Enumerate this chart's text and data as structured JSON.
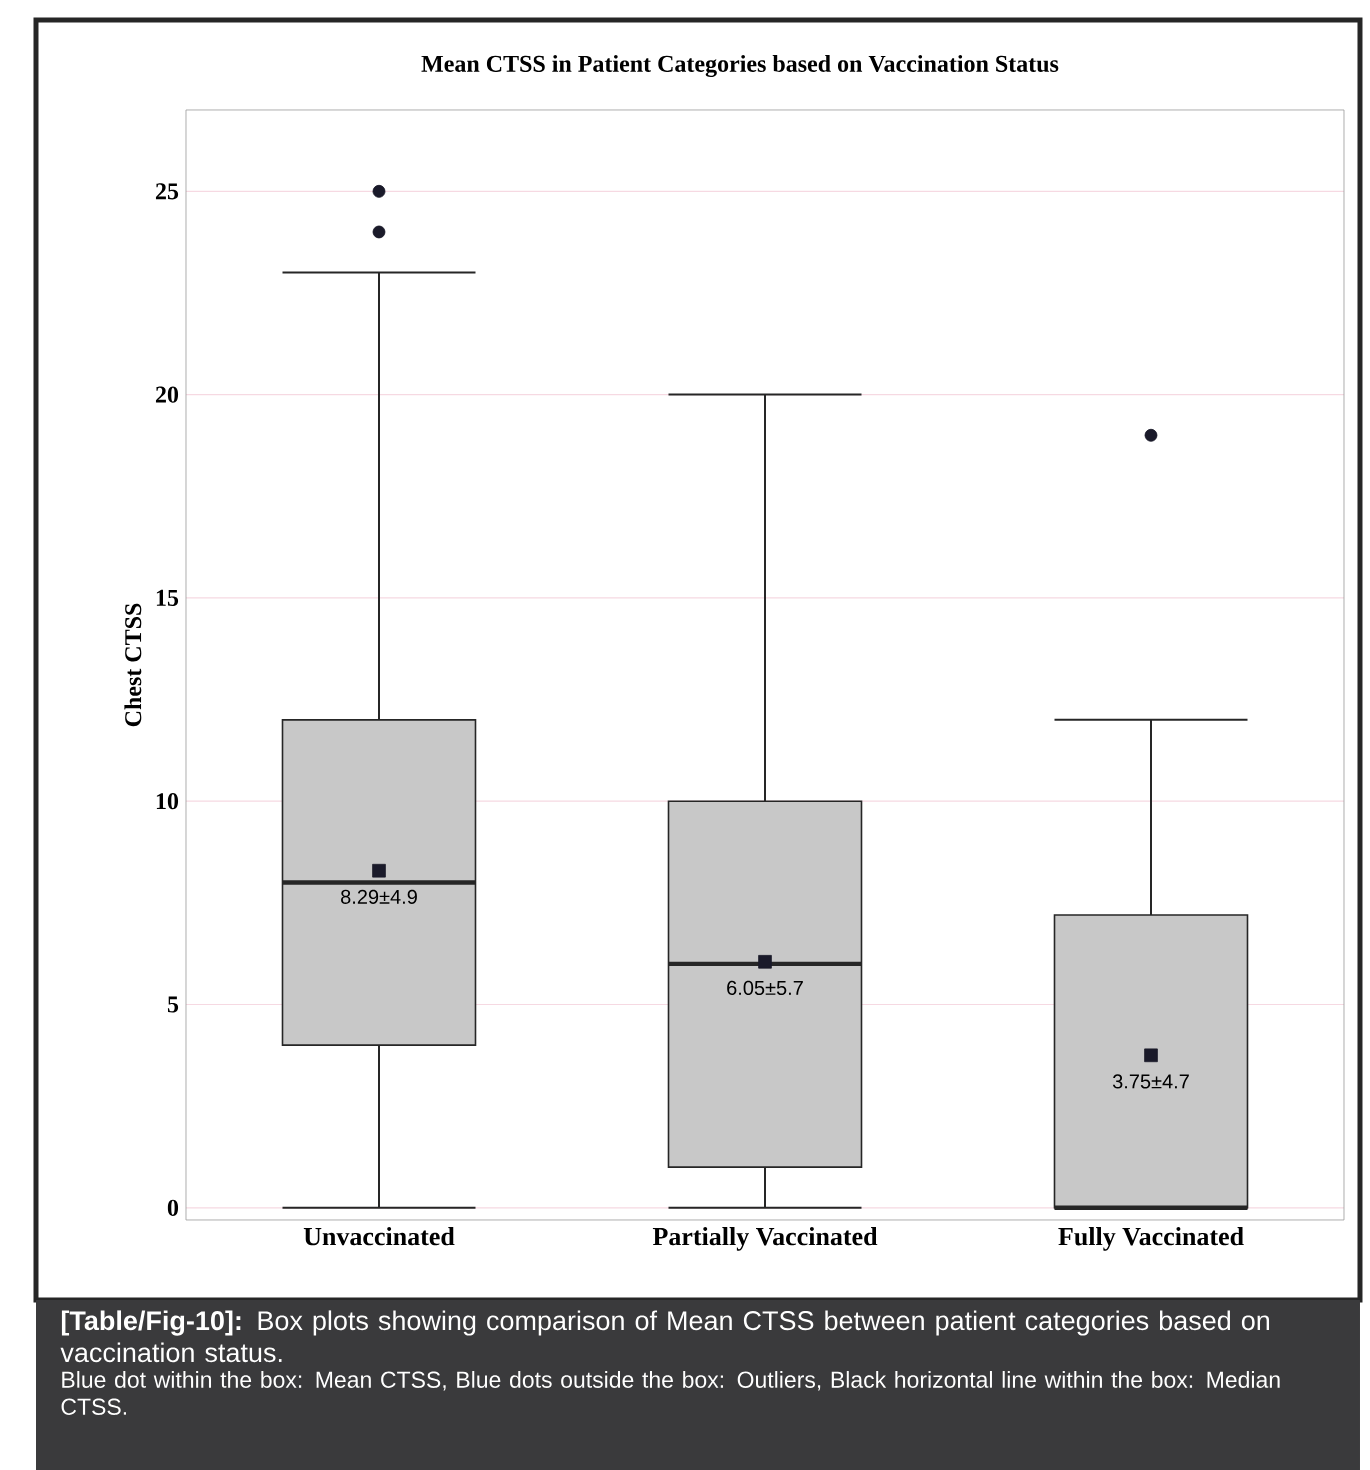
{
  "chart_data": {
    "type": "box",
    "title": "Mean CTSS in Patient Categories based on Vaccination Status",
    "ylabel": "Chest CTSS",
    "categories": [
      "Unvaccinated",
      "Partially Vaccinated",
      "Fully Vaccinated"
    ],
    "color": "#c8c8c8",
    "boxes": [
      {
        "low": 0,
        "q1": 4,
        "median": 8,
        "q3": 12,
        "high": 23,
        "mean": 8.29,
        "outliers": [
          24,
          25
        ]
      },
      {
        "low": 0,
        "q1": 1,
        "median": 6,
        "q3": 10,
        "high": 20,
        "mean": 6.05
      },
      {
        "low": 0,
        "q1": 0,
        "median": 0,
        "q3": 7.2,
        "high": 12,
        "mean": 3.75,
        "outliers": [
          19
        ]
      }
    ],
    "ylim": [
      -0.3,
      27
    ],
    "yticks": [
      0,
      5,
      10,
      15,
      20,
      25
    ],
    "grid": "y",
    "annotations": [
      "8.29±4.9",
      "6.05±5.7",
      "3.75±4.7",
      "**[Table/Fig-10]:**  Box plots showing comparison of Mean CTSS between patient categories based on vaccination status.",
      "Blue dot within the box: Mean CTSS, Blue dots outside the box: Outliers, Black horizontal line within the box: Median CTSS."
    ]
  }
}
